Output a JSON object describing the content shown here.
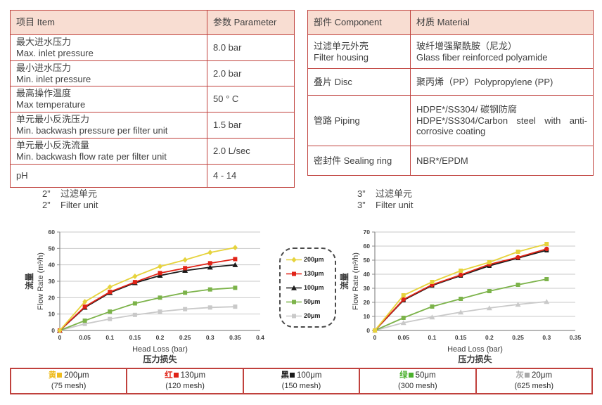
{
  "spec_table": {
    "headers": [
      "项目 Item",
      "参数 Parameter"
    ],
    "rows": [
      {
        "cn": "最大进水压力",
        "en": "Max. inlet pressure",
        "value": "8.0 bar"
      },
      {
        "cn": "最小进水压力",
        "en": "Min. inlet pressure",
        "value": "2.0 bar"
      },
      {
        "cn": "最高操作温度",
        "en": "Max temperature",
        "value": "50 ° C"
      },
      {
        "cn": "单元最小反洗压力",
        "en": "Min. backwash pressure per filter unit",
        "value": "1.5 bar"
      },
      {
        "cn": "单元最小反洗流量",
        "en": "Min. backwash flow rate per filter unit",
        "value": "2.0 L/sec"
      },
      {
        "cn": "pH",
        "en": "",
        "value": "4 - 14"
      }
    ]
  },
  "material_table": {
    "headers": [
      "部件 Component",
      "材质 Material"
    ],
    "rows": [
      {
        "cn": "过滤单元外壳",
        "en": "Filter housing",
        "mat_cn": "玻纤增强聚酰胺（尼龙）",
        "mat_en": "Glass fiber reinforced polyamide"
      },
      {
        "cn": "叠片 Disc",
        "en": "",
        "mat_cn": "聚丙烯（PP）Polypropylene (PP)",
        "mat_en": ""
      },
      {
        "cn": "管路 Piping",
        "en": "",
        "mat_cn": "HDPE*/SS304/ 碳钢防腐",
        "mat_en": "HDPE*/SS304/Carbon steel with anti-corrosive coating"
      },
      {
        "cn": "密封件 Sealing ring",
        "en": "",
        "mat_cn": "NBR*/EPDM",
        "mat_en": ""
      }
    ]
  },
  "chart_data": [
    {
      "type": "line",
      "title_prefix": "2”",
      "title_cn": "过滤单元",
      "title_en": "Filter unit",
      "xlabel": "Head Loss (bar)",
      "xlabel_cn": "压力损失",
      "ylabel": "Flow Rate (m³/h)",
      "ylabel_cn": "流量",
      "xlim": [
        0,
        0.4
      ],
      "ylim": [
        0,
        60
      ],
      "xtick_step": 0.05,
      "ytick_step": 10,
      "grid": true,
      "legend_position": "none",
      "x": [
        0,
        0.05,
        0.1,
        0.15,
        0.2,
        0.25,
        0.3,
        0.35
      ],
      "series": [
        {
          "name": "200μm",
          "color": "#e6d33c",
          "marker": "diamond",
          "values": [
            0,
            17.5,
            26.5,
            33,
            39,
            43,
            47.5,
            50.5
          ]
        },
        {
          "name": "130μm",
          "color": "#e02317",
          "marker": "square",
          "values": [
            0,
            14.5,
            23.5,
            29.5,
            35,
            38,
            41,
            43.5
          ]
        },
        {
          "name": "100μm",
          "color": "#1a1a1a",
          "marker": "triangle",
          "values": [
            0,
            14,
            23,
            29,
            33.5,
            36.5,
            38.5,
            40
          ]
        },
        {
          "name": "50μm",
          "color": "#7cb34a",
          "marker": "square",
          "values": [
            0,
            6,
            11.5,
            16.5,
            20,
            23,
            25,
            26
          ]
        },
        {
          "name": "20μm",
          "color": "#c9c9c9",
          "marker": "square",
          "values": [
            0,
            4,
            7,
            9.5,
            11.5,
            13,
            14,
            14.5
          ]
        }
      ]
    },
    {
      "type": "line",
      "title_prefix": "3”",
      "title_cn": "过滤单元",
      "title_en": "Filter unit",
      "xlabel": "Head Loss (bar)",
      "xlabel_cn": "压力损失",
      "ylabel": "Flow Rate (m³/h)",
      "ylabel_cn": "流量",
      "xlim": [
        0,
        0.35
      ],
      "ylim": [
        0,
        70
      ],
      "xtick_step": 0.05,
      "ytick_step": 10,
      "grid": true,
      "legend_position": "none",
      "x": [
        0,
        0.05,
        0.1,
        0.15,
        0.2,
        0.25,
        0.3
      ],
      "series": [
        {
          "name": "200μm",
          "color": "#e6d33c",
          "marker": "square",
          "values": [
            0,
            25,
            34.5,
            42.5,
            48.5,
            56,
            61.5
          ]
        },
        {
          "name": "130μm",
          "color": "#e02317",
          "marker": "circle",
          "values": [
            0,
            22,
            32.5,
            39.5,
            47,
            52,
            58
          ]
        },
        {
          "name": "100μm",
          "color": "#1a1a1a",
          "marker": "square",
          "values": [
            0,
            21.5,
            32,
            39,
            46,
            51.5,
            57
          ]
        },
        {
          "name": "50μm",
          "color": "#7cb34a",
          "marker": "square",
          "values": [
            0,
            9,
            17,
            22.5,
            28,
            32.5,
            36.5
          ]
        },
        {
          "name": "20μm",
          "color": "#c9c9c9",
          "marker": "triangle",
          "values": [
            0,
            5.5,
            9.5,
            13,
            16,
            18.5,
            20.5
          ]
        }
      ]
    }
  ],
  "curve_legend": {
    "items": [
      {
        "label": "200μm",
        "color": "#e6d33c",
        "marker": "diamond"
      },
      {
        "label": "130μm",
        "color": "#e02317",
        "marker": "square"
      },
      {
        "label": "100μm",
        "color": "#1a1a1a",
        "marker": "triangle"
      },
      {
        "label": "50μm",
        "color": "#7cb34a",
        "marker": "square"
      },
      {
        "label": "20μm",
        "color": "#c9c9c9",
        "marker": "square"
      }
    ]
  },
  "mesh_legend": [
    {
      "cn": "黄",
      "color": "#eebc20",
      "size": "200μm",
      "mesh": "(75 mesh)"
    },
    {
      "cn": "红",
      "color": "#e02317",
      "size": "130μm",
      "mesh": "(120 mesh)"
    },
    {
      "cn": "黑",
      "color": "#1a1a1a",
      "size": "100μm",
      "mesh": "(150 mesh)"
    },
    {
      "cn": "绿",
      "color": "#4cb02e",
      "size": "50μm",
      "mesh": "(300 mesh)"
    },
    {
      "cn": "灰",
      "color": "#a8a8a8",
      "size": "20μm",
      "mesh": "(625 mesh)"
    }
  ]
}
